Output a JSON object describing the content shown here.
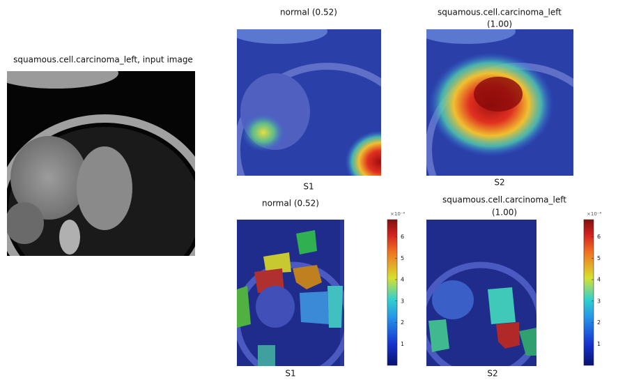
{
  "input": {
    "title": "squamous.cell.carcinoma_left, input image"
  },
  "panels": [
    {
      "title": [
        "normal (0.52)"
      ],
      "label": "S1"
    },
    {
      "title": [
        "squamous.cell.carcinoma_left",
        "(1.00)"
      ],
      "label": "S2"
    },
    {
      "title": [
        "normal (0.52)"
      ],
      "label": "S1"
    },
    {
      "title": [
        "squamous.cell.carcinoma_left",
        "(1.00)"
      ],
      "label": "S2"
    }
  ],
  "colorbars": [
    {
      "exponent_label": "×10⁻⁶",
      "lim": [
        0,
        6.8
      ],
      "ticks": [
        1,
        2,
        3,
        4,
        5,
        6
      ]
    },
    {
      "exponent_label": "×10⁻⁶",
      "lim": [
        0,
        6.8
      ],
      "ticks": [
        1,
        2,
        3,
        4,
        5,
        6
      ]
    }
  ]
}
